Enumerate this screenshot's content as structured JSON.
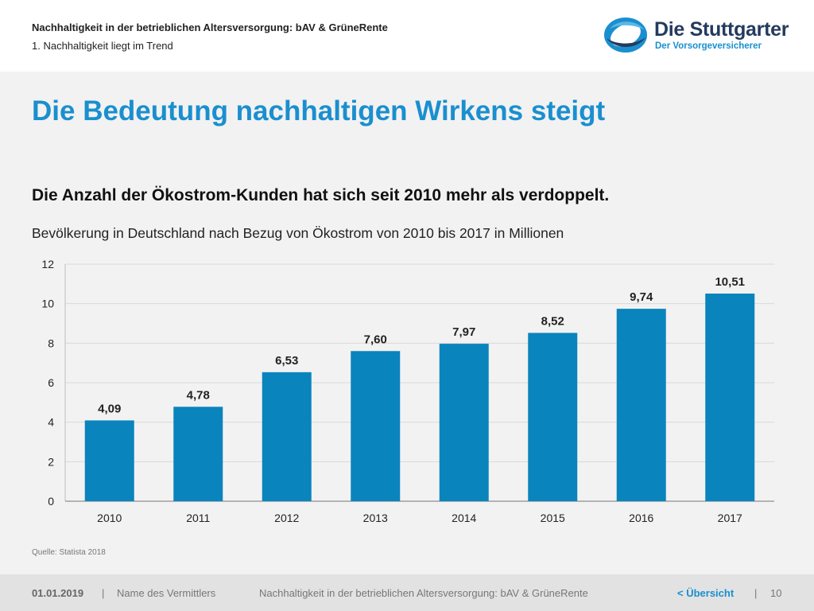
{
  "header": {
    "title": "Nachhaltigkeit in der betrieblichen Altersversorgung: bAV & GrüneRente",
    "subtitle": "1. Nachhaltigkeit liegt im Trend"
  },
  "logo": {
    "name": "Die Stuttgarter",
    "tagline": "Der Vorsorgeversicherer"
  },
  "slide": {
    "title": "Die Bedeutung nachhaltigen Wirkens steigt",
    "headline": "Die Anzahl der Ökostrom-Kunden hat sich seit 2010 mehr als verdoppelt.",
    "caption": "Bevölkerung in Deutschland nach Bezug von Ökostrom von 2010 bis 2017 in Millionen",
    "source": "Quelle: Statista 2018"
  },
  "chart_data": {
    "type": "bar",
    "categories": [
      "2010",
      "2011",
      "2012",
      "2013",
      "2014",
      "2015",
      "2016",
      "2017"
    ],
    "values": [
      4.09,
      4.78,
      6.53,
      7.6,
      7.97,
      8.52,
      9.74,
      10.51
    ],
    "value_labels": [
      "4,09",
      "4,78",
      "6,53",
      "7,60",
      "7,97",
      "8,52",
      "9,74",
      "10,51"
    ],
    "ylim": [
      0,
      12
    ],
    "yticks": [
      0,
      2,
      4,
      6,
      8,
      10,
      12
    ],
    "grid": true,
    "legend": "none",
    "bar_color": "#0a84bd"
  },
  "footer": {
    "date": "01.01.2019",
    "separator": "|",
    "agent": "Name des Vermittlers",
    "document": "Nachhaltigkeit in der betrieblichen Altersversorgung: bAV & GrüneRente",
    "overview": "< Übersicht",
    "page": "10"
  },
  "colors": {
    "accent": "#1a8fcf",
    "brand_dark": "#243a5e",
    "content_bg": "#f2f2f2",
    "footer_bg": "#e2e2e2"
  }
}
